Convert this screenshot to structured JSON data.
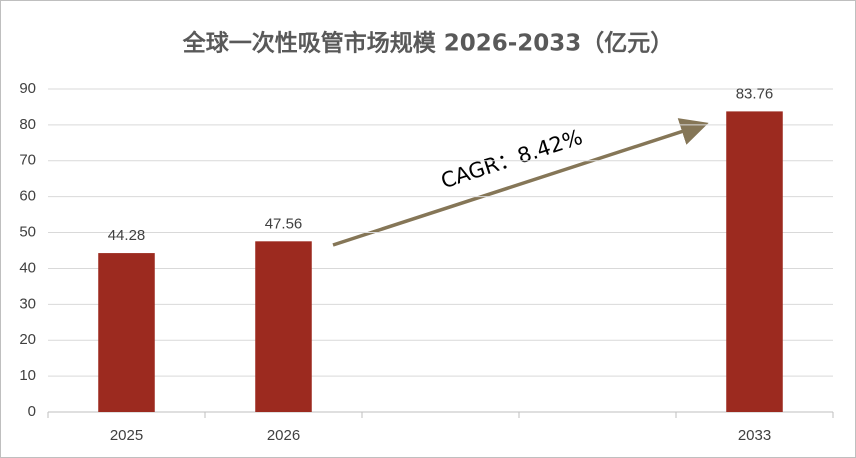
{
  "chart_data": {
    "type": "bar",
    "title": "全球一次性吸管市场规模 2026-2033（亿元）",
    "categories": [
      "2025",
      "2026",
      null,
      null,
      "2033"
    ],
    "values": [
      44.28,
      47.56,
      null,
      null,
      83.76
    ],
    "color": "#9c2a1f",
    "ylim": [
      0,
      90
    ],
    "yticks": [
      0,
      10,
      20,
      30,
      40,
      50,
      60,
      70,
      80,
      90
    ],
    "grid": true,
    "annotation": "CAGR：8.42%"
  }
}
